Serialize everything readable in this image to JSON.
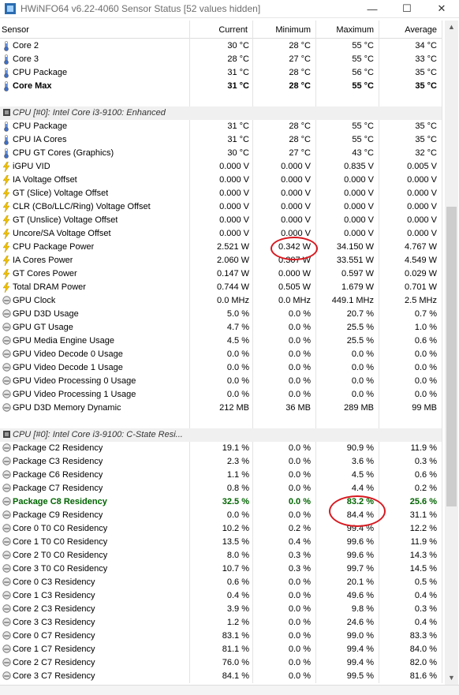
{
  "window": {
    "title": "HWiNFO64 v6.22-4060 Sensor Status [52 values hidden]",
    "minimize": "—",
    "maximize": "☐",
    "close": "✕"
  },
  "header": {
    "sensor": "Sensor",
    "current": "Current",
    "minimum": "Minimum",
    "maximum": "Maximum",
    "average": "Average"
  },
  "colors": {
    "temp_icon": "#3a6fd0",
    "power_icon": "#f2c200",
    "clock_icon": "#777777",
    "green_row": "#006400",
    "annotation": "#d71920"
  },
  "rows": [
    {
      "icon": "thermometer-icon",
      "label": "Core 2",
      "cur": "30 °C",
      "min": "28 °C",
      "max": "55 °C",
      "avg": "34 °C"
    },
    {
      "icon": "thermometer-icon",
      "label": "Core 3",
      "cur": "28 °C",
      "min": "27 °C",
      "max": "55 °C",
      "avg": "33 °C"
    },
    {
      "icon": "thermometer-icon",
      "label": "CPU Package",
      "cur": "31 °C",
      "min": "28 °C",
      "max": "56 °C",
      "avg": "35 °C"
    },
    {
      "icon": "thermometer-icon",
      "label": "Core Max",
      "cur": "31 °C",
      "min": "28 °C",
      "max": "55 °C",
      "avg": "35 °C",
      "style": "bold"
    },
    {
      "type": "spacer"
    },
    {
      "type": "group",
      "label": "CPU [#0]: Intel Core i3-9100: Enhanced"
    },
    {
      "icon": "thermometer-icon",
      "label": "CPU Package",
      "cur": "31 °C",
      "min": "28 °C",
      "max": "55 °C",
      "avg": "35 °C"
    },
    {
      "icon": "thermometer-icon",
      "label": "CPU IA Cores",
      "cur": "31 °C",
      "min": "28 °C",
      "max": "55 °C",
      "avg": "35 °C"
    },
    {
      "icon": "thermometer-icon",
      "label": "CPU GT Cores (Graphics)",
      "cur": "30 °C",
      "min": "27 °C",
      "max": "43 °C",
      "avg": "32 °C"
    },
    {
      "icon": "bolt-icon",
      "label": "iGPU VID",
      "cur": "0.000 V",
      "min": "0.000 V",
      "max": "0.835 V",
      "avg": "0.005 V"
    },
    {
      "icon": "bolt-icon",
      "label": "IA Voltage Offset",
      "cur": "0.000 V",
      "min": "0.000 V",
      "max": "0.000 V",
      "avg": "0.000 V"
    },
    {
      "icon": "bolt-icon",
      "label": "GT (Slice) Voltage Offset",
      "cur": "0.000 V",
      "min": "0.000 V",
      "max": "0.000 V",
      "avg": "0.000 V"
    },
    {
      "icon": "bolt-icon",
      "label": "CLR (CBo/LLC/Ring) Voltage Offset",
      "cur": "0.000 V",
      "min": "0.000 V",
      "max": "0.000 V",
      "avg": "0.000 V"
    },
    {
      "icon": "bolt-icon",
      "label": "GT (Unslice) Voltage Offset",
      "cur": "0.000 V",
      "min": "0.000 V",
      "max": "0.000 V",
      "avg": "0.000 V"
    },
    {
      "icon": "bolt-icon",
      "label": "Uncore/SA Voltage Offset",
      "cur": "0.000 V",
      "min": "0.000 V",
      "max": "0.000 V",
      "avg": "0.000 V"
    },
    {
      "icon": "bolt-icon",
      "label": "CPU Package Power",
      "cur": "2.521 W",
      "min": "0.342 W",
      "max": "34.150 W",
      "avg": "4.767 W"
    },
    {
      "icon": "bolt-icon",
      "label": "IA Cores Power",
      "cur": "2.060 W",
      "min": "0.307 W",
      "max": "33.551 W",
      "avg": "4.549 W"
    },
    {
      "icon": "bolt-icon",
      "label": "GT Cores Power",
      "cur": "0.147 W",
      "min": "0.000 W",
      "max": "0.597 W",
      "avg": "0.029 W"
    },
    {
      "icon": "bolt-icon",
      "label": "Total DRAM Power",
      "cur": "0.744 W",
      "min": "0.505 W",
      "max": "1.679 W",
      "avg": "0.701 W"
    },
    {
      "icon": "gauge-icon",
      "label": "GPU Clock",
      "cur": "0.0 MHz",
      "min": "0.0 MHz",
      "max": "449.1 MHz",
      "avg": "2.5 MHz"
    },
    {
      "icon": "gauge-icon",
      "label": "GPU D3D Usage",
      "cur": "5.0 %",
      "min": "0.0 %",
      "max": "20.7 %",
      "avg": "0.7 %"
    },
    {
      "icon": "gauge-icon",
      "label": "GPU GT Usage",
      "cur": "4.7 %",
      "min": "0.0 %",
      "max": "25.5 %",
      "avg": "1.0 %"
    },
    {
      "icon": "gauge-icon",
      "label": "GPU Media Engine Usage",
      "cur": "4.5 %",
      "min": "0.0 %",
      "max": "25.5 %",
      "avg": "0.6 %"
    },
    {
      "icon": "gauge-icon",
      "label": "GPU Video Decode 0 Usage",
      "cur": "0.0 %",
      "min": "0.0 %",
      "max": "0.0 %",
      "avg": "0.0 %"
    },
    {
      "icon": "gauge-icon",
      "label": "GPU Video Decode 1 Usage",
      "cur": "0.0 %",
      "min": "0.0 %",
      "max": "0.0 %",
      "avg": "0.0 %"
    },
    {
      "icon": "gauge-icon",
      "label": "GPU Video Processing 0 Usage",
      "cur": "0.0 %",
      "min": "0.0 %",
      "max": "0.0 %",
      "avg": "0.0 %"
    },
    {
      "icon": "gauge-icon",
      "label": "GPU Video Processing 1 Usage",
      "cur": "0.0 %",
      "min": "0.0 %",
      "max": "0.0 %",
      "avg": "0.0 %"
    },
    {
      "icon": "gauge-icon",
      "label": "GPU D3D Memory Dynamic",
      "cur": "212 MB",
      "min": "36 MB",
      "max": "289 MB",
      "avg": "99 MB"
    },
    {
      "type": "spacer"
    },
    {
      "type": "group",
      "label": "CPU [#0]: Intel Core i3-9100: C-State Resi..."
    },
    {
      "icon": "gauge-icon",
      "label": "Package C2 Residency",
      "cur": "19.1 %",
      "min": "0.0 %",
      "max": "90.9 %",
      "avg": "11.9 %"
    },
    {
      "icon": "gauge-icon",
      "label": "Package C3 Residency",
      "cur": "2.3 %",
      "min": "0.0 %",
      "max": "3.6 %",
      "avg": "0.3 %"
    },
    {
      "icon": "gauge-icon",
      "label": "Package C6 Residency",
      "cur": "1.1 %",
      "min": "0.0 %",
      "max": "4.5 %",
      "avg": "0.6 %"
    },
    {
      "icon": "gauge-icon",
      "label": "Package C7 Residency",
      "cur": "0.8 %",
      "min": "0.0 %",
      "max": "4.4 %",
      "avg": "0.2 %"
    },
    {
      "icon": "gauge-icon",
      "label": "Package C8 Residency",
      "cur": "32.5 %",
      "min": "0.0 %",
      "max": "83.2 %",
      "avg": "25.6 %",
      "style": "green"
    },
    {
      "icon": "gauge-icon",
      "label": "Package C9 Residency",
      "cur": "0.0 %",
      "min": "0.0 %",
      "max": "84.4 %",
      "avg": "31.1 %"
    },
    {
      "icon": "gauge-icon",
      "label": "Core 0 T0 C0 Residency",
      "cur": "10.2 %",
      "min": "0.2 %",
      "max": "99.4 %",
      "avg": "12.2 %"
    },
    {
      "icon": "gauge-icon",
      "label": "Core 1 T0 C0 Residency",
      "cur": "13.5 %",
      "min": "0.4 %",
      "max": "99.6 %",
      "avg": "11.9 %"
    },
    {
      "icon": "gauge-icon",
      "label": "Core 2 T0 C0 Residency",
      "cur": "8.0 %",
      "min": "0.3 %",
      "max": "99.6 %",
      "avg": "14.3 %"
    },
    {
      "icon": "gauge-icon",
      "label": "Core 3 T0 C0 Residency",
      "cur": "10.7 %",
      "min": "0.3 %",
      "max": "99.7 %",
      "avg": "14.5 %"
    },
    {
      "icon": "gauge-icon",
      "label": "Core 0 C3 Residency",
      "cur": "0.6 %",
      "min": "0.0 %",
      "max": "20.1 %",
      "avg": "0.5 %"
    },
    {
      "icon": "gauge-icon",
      "label": "Core 1 C3 Residency",
      "cur": "0.4 %",
      "min": "0.0 %",
      "max": "49.6 %",
      "avg": "0.4 %"
    },
    {
      "icon": "gauge-icon",
      "label": "Core 2 C3 Residency",
      "cur": "3.9 %",
      "min": "0.0 %",
      "max": "9.8 %",
      "avg": "0.3 %"
    },
    {
      "icon": "gauge-icon",
      "label": "Core 3 C3 Residency",
      "cur": "1.2 %",
      "min": "0.0 %",
      "max": "24.6 %",
      "avg": "0.4 %"
    },
    {
      "icon": "gauge-icon",
      "label": "Core 0 C7 Residency",
      "cur": "83.1 %",
      "min": "0.0 %",
      "max": "99.0 %",
      "avg": "83.3 %"
    },
    {
      "icon": "gauge-icon",
      "label": "Core 1 C7 Residency",
      "cur": "81.1 %",
      "min": "0.0 %",
      "max": "99.4 %",
      "avg": "84.0 %"
    },
    {
      "icon": "gauge-icon",
      "label": "Core 2 C7 Residency",
      "cur": "76.0 %",
      "min": "0.0 %",
      "max": "99.4 %",
      "avg": "82.0 %"
    },
    {
      "icon": "gauge-icon",
      "label": "Core 3 C7 Residency",
      "cur": "84.1 %",
      "min": "0.0 %",
      "max": "99.5 %",
      "avg": "81.6 %"
    }
  ]
}
